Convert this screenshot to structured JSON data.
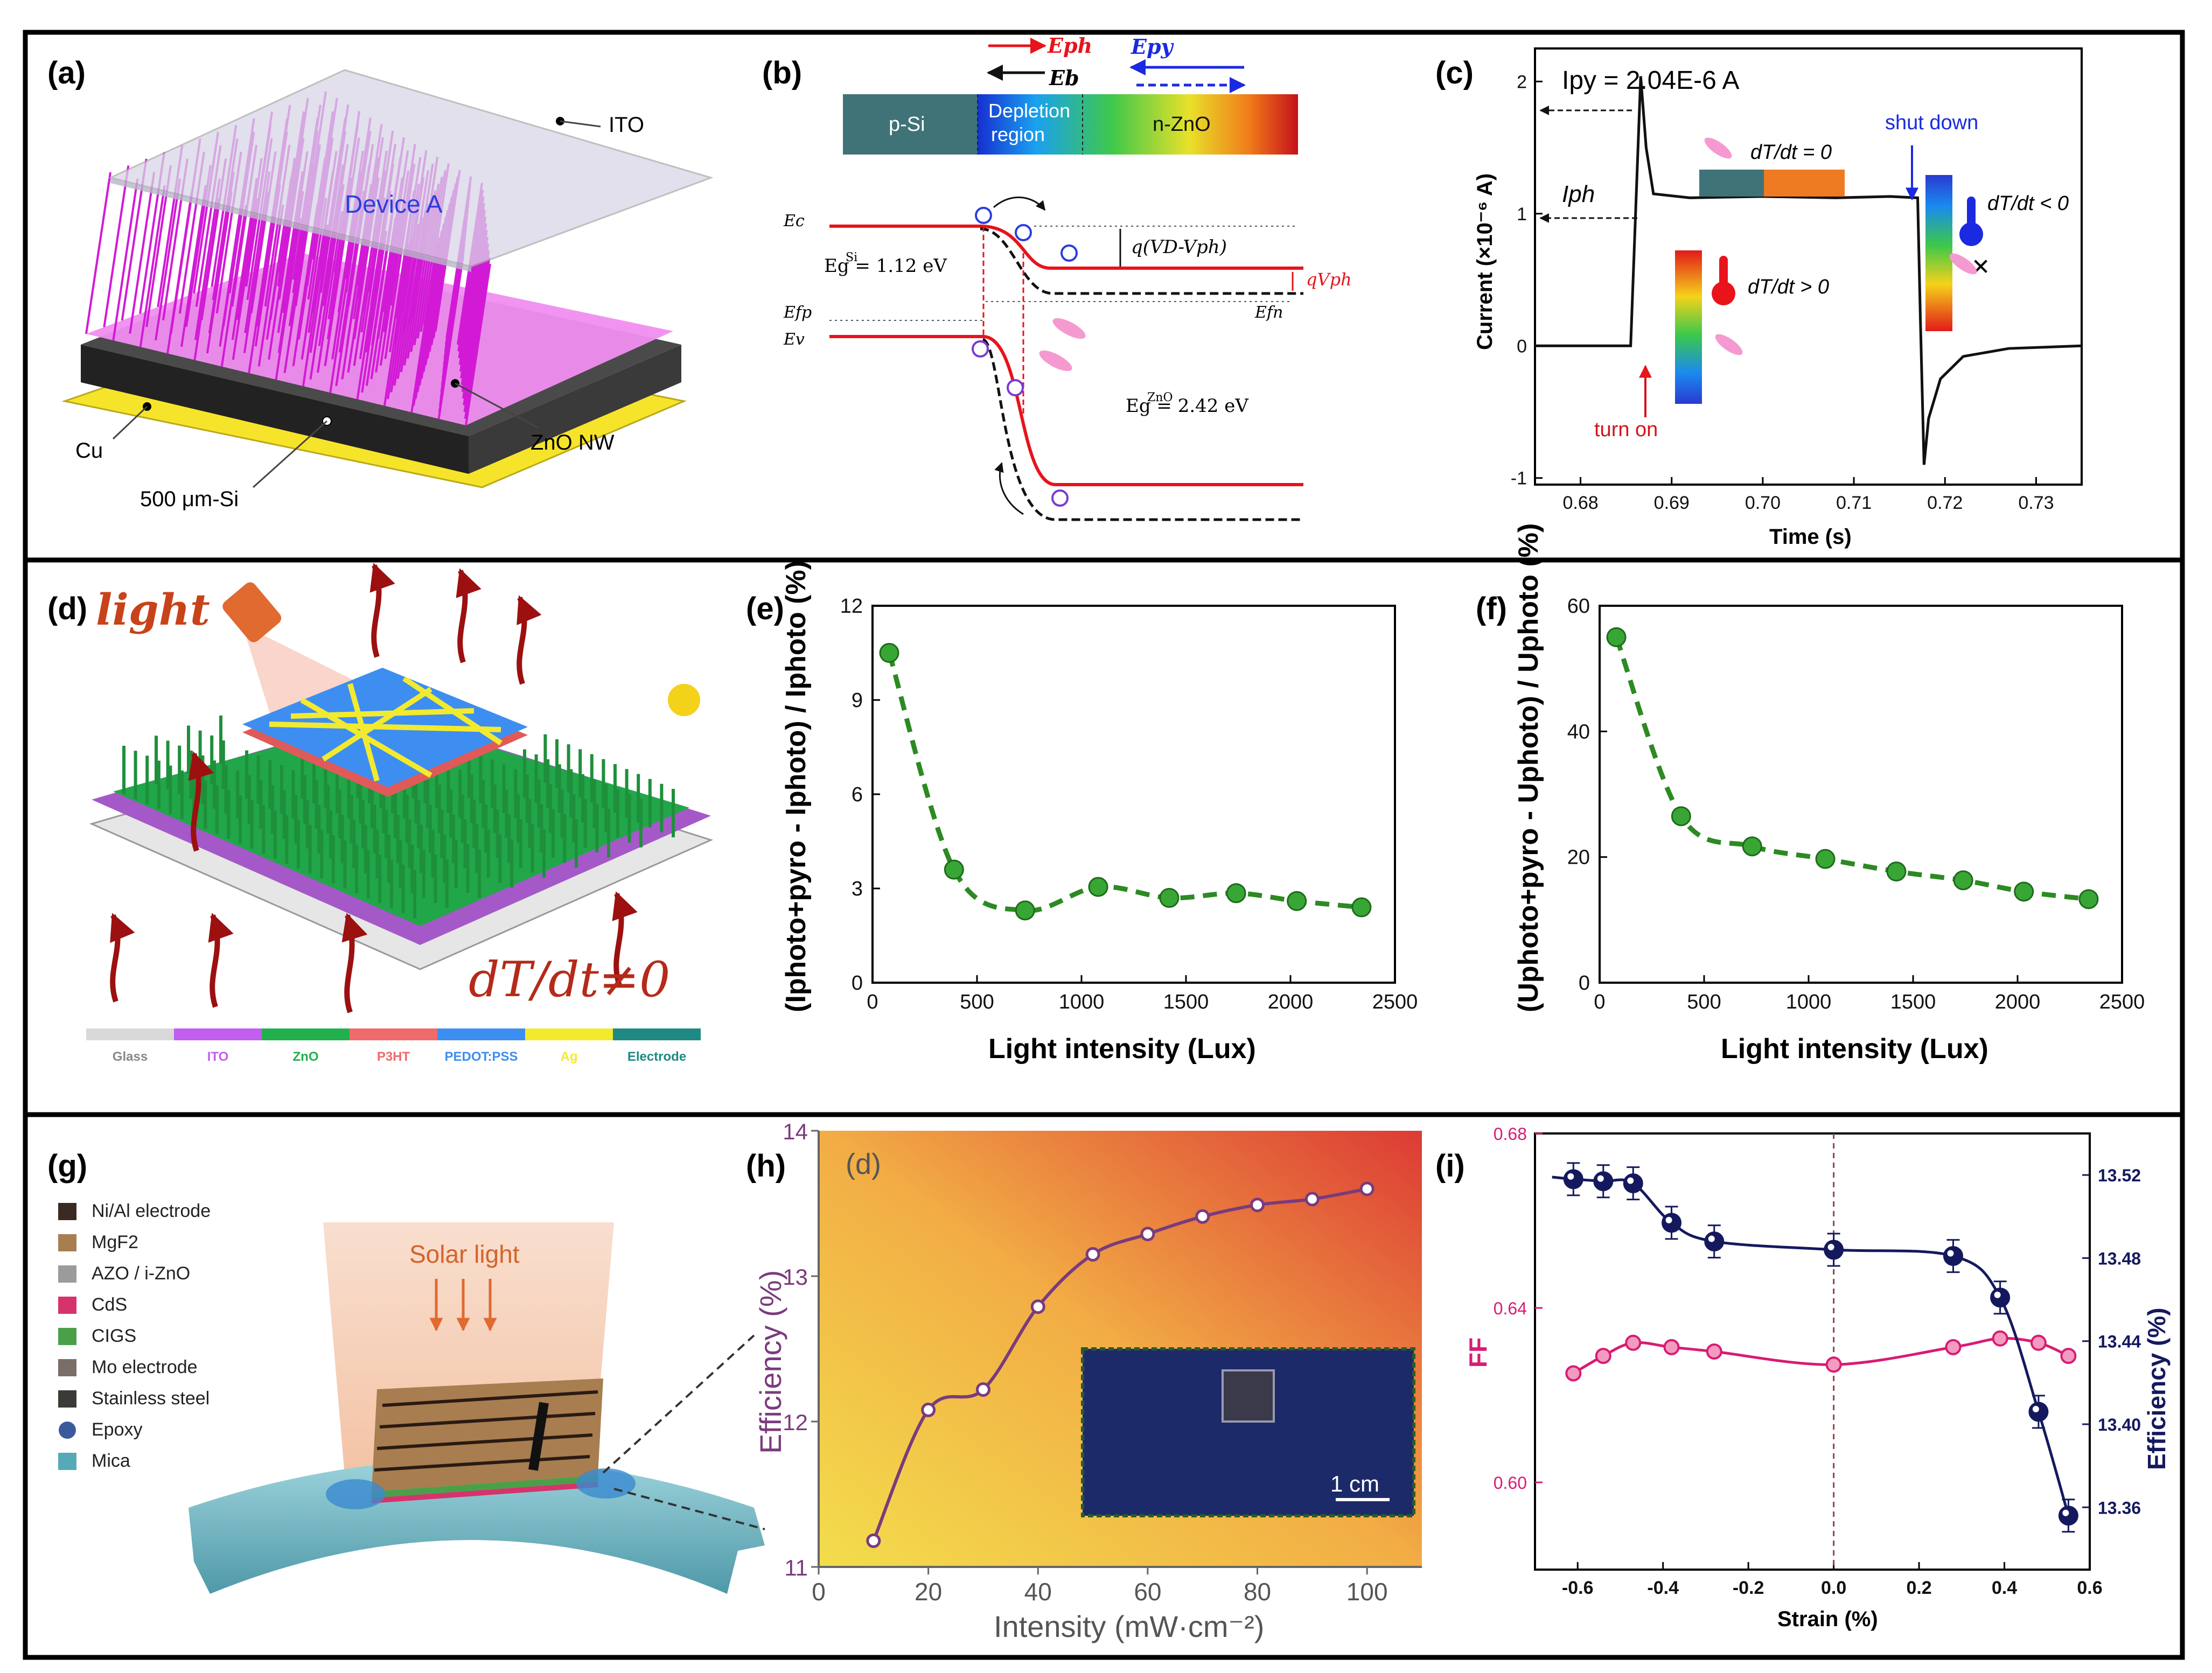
{
  "colors": {
    "pSi": "#3f7377",
    "ZnO_green": "#2db34a",
    "red": "#e8131b",
    "navy": "#14195e",
    "magenta": "#d81b74",
    "pink_nw": "#f47cf0",
    "purple": "#7a3b7d",
    "marker_green": "#38a635",
    "yellow": "#f6e84a",
    "orange_grad_end": "#e0403a"
  },
  "panel_labels": [
    "(a)",
    "(b)",
    "(c)",
    "(d)",
    "(e)",
    "(f)",
    "(g)",
    "(h)",
    "(i)"
  ],
  "panel_a": {
    "labels": {
      "ito": "ITO",
      "device": "Device A",
      "cu": "Cu",
      "si": "500 μm-Si",
      "znonw": "ZnO NW"
    }
  },
  "panel_b": {
    "arrows": {
      "eph": "Eph",
      "eb": "Eb",
      "epy": "Epy"
    },
    "bar": {
      "psi": "p-Si",
      "depletion1": "Depletion",
      "depletion2": "region",
      "nzno": "n-ZnO"
    },
    "levels": {
      "ec": "Ec",
      "efp": "Efp",
      "ev": "Ev",
      "efn": "Efn"
    },
    "gap_si": "Eg = 1.12 eV",
    "gap_si_sup": "Si",
    "gap_zno": "Eg = 2.42 eV",
    "gap_zno_sup": "ZnO",
    "qvd": "q(VD-Vph)",
    "qvph": "qVph"
  },
  "panel_c": {
    "ipy_text": "Ipy = 2.04E-6 A",
    "iph": "Iph",
    "annotations": {
      "dtdt0": "dT/dt = 0",
      "dtdt_pos": "dT/dt > 0",
      "dtdt_neg": "dT/dt < 0",
      "turn_on": "turn on",
      "shut_down": "shut down"
    },
    "chart_data": {
      "type": "line",
      "xlabel": "Time (s)",
      "ylabel": "Current (×10⁻⁶ A)",
      "xlim": [
        0.675,
        0.735
      ],
      "ylim": [
        -1.05,
        2.25
      ],
      "xticks": [
        "0.68",
        "0.69",
        "0.70",
        "0.71",
        "0.72",
        "0.73"
      ],
      "yticks": [
        "-1",
        "0",
        "1",
        "2"
      ],
      "series": [
        {
          "name": "Current",
          "x": [
            0.675,
            0.6855,
            0.6862,
            0.6866,
            0.6872,
            0.688,
            0.692,
            0.7,
            0.708,
            0.714,
            0.717,
            0.7173,
            0.7177,
            0.7182,
            0.7195,
            0.722,
            0.727,
            0.735
          ],
          "y": [
            0.0,
            0.0,
            1.3,
            2.04,
            1.5,
            1.15,
            1.12,
            1.13,
            1.12,
            1.13,
            1.12,
            0.2,
            -0.9,
            -0.55,
            -0.25,
            -0.08,
            -0.02,
            0.0
          ]
        }
      ]
    }
  },
  "panel_d": {
    "light": "light",
    "dtdt": "dT/dt≠0",
    "legend": [
      "Glass",
      "ITO",
      "ZnO",
      "P3HT",
      "PEDOT:PSS",
      "Ag",
      "Electrode"
    ],
    "legend_colors": [
      "#d9d9d9",
      "#c25ef0",
      "#22b04d",
      "#ef6b6b",
      "#3d8ef0",
      "#f2ea2e",
      "#1f8a84"
    ]
  },
  "panel_e": {
    "chart_data": {
      "type": "scatter",
      "xlabel": "Light intensity (Lux)",
      "ylabel": "(Iphoto+pyro - Iphoto) / Iphoto (%)",
      "xlim": [
        0,
        2500
      ],
      "ylim": [
        0,
        12
      ],
      "xticks": [
        "0",
        "500",
        "1000",
        "1500",
        "2000",
        "2500"
      ],
      "yticks": [
        "0",
        "3",
        "6",
        "9",
        "12"
      ],
      "x": [
        80,
        390,
        730,
        1080,
        1420,
        1740,
        2030,
        2340
      ],
      "y": [
        10.5,
        3.6,
        2.3,
        3.05,
        2.7,
        2.85,
        2.6,
        2.4
      ]
    }
  },
  "panel_f": {
    "chart_data": {
      "type": "scatter",
      "xlabel": "Light intensity (Lux)",
      "ylabel": "(Uphoto+pyro - Uphoto) / Uphoto (%)",
      "xlim": [
        0,
        2500
      ],
      "ylim": [
        0,
        60
      ],
      "xticks": [
        "0",
        "500",
        "1000",
        "1500",
        "2000",
        "2500"
      ],
      "yticks": [
        "0",
        "20",
        "40",
        "60"
      ],
      "x": [
        80,
        390,
        730,
        1080,
        1420,
        1740,
        2030,
        2340
      ],
      "y": [
        55,
        26.5,
        21.7,
        19.7,
        17.7,
        16.3,
        14.5,
        13.3
      ]
    }
  },
  "panel_g": {
    "solar": "Solar  light",
    "legend": [
      "Ni/Al electrode",
      "MgF2",
      "AZO / i-ZnO",
      "CdS",
      "CIGS",
      "Mo electrode",
      "Stainless steel",
      "Epoxy",
      "Mica"
    ],
    "legend_colors": [
      "#3a2a22",
      "#a87d50",
      "#9b9b9b",
      "#d6336c",
      "#4aa049",
      "#7a6e69",
      "#3c3a37",
      "#3a5a9c",
      "#56a9b6"
    ]
  },
  "panel_h": {
    "sub_label": "(d)",
    "scale": "1 cm",
    "chart_data": {
      "type": "line",
      "xlabel": "Intensity (mW·cm⁻²)",
      "ylabel": "Efficiency (%)",
      "xlim": [
        0,
        110
      ],
      "ylim": [
        11,
        14
      ],
      "xticks": [
        "0",
        "20",
        "40",
        "60",
        "80",
        "100"
      ],
      "yticks": [
        "11",
        "12",
        "13",
        "14"
      ],
      "x": [
        10,
        20,
        30,
        40,
        50,
        60,
        70,
        80,
        90,
        100
      ],
      "y": [
        11.18,
        12.08,
        12.22,
        12.79,
        13.15,
        13.29,
        13.41,
        13.49,
        13.53,
        13.6
      ]
    }
  },
  "panel_i": {
    "chart_data": {
      "type": "scatter",
      "xlabel": "Strain (%)",
      "ylabel_left": "FF",
      "ylabel_right": "Efficiency (%)",
      "xlim": [
        -0.7,
        0.6
      ],
      "ylim_left": [
        0.58,
        0.68
      ],
      "ylim_right": [
        13.33,
        13.54
      ],
      "xticks": [
        "-0.6",
        "-0.4",
        "-0.2",
        "0.0",
        "0.2",
        "0.4",
        "0.6"
      ],
      "yticks_left": [
        "0.60",
        "0.64",
        "0.68"
      ],
      "yticks_right": [
        "13.36",
        "13.40",
        "13.44",
        "13.48",
        "13.52"
      ],
      "series": [
        {
          "name": "FF",
          "axis": "left",
          "x": [
            -0.61,
            -0.54,
            -0.47,
            -0.38,
            -0.28,
            0.0,
            0.28,
            0.39,
            0.48,
            0.55
          ],
          "y": [
            0.625,
            0.629,
            0.632,
            0.631,
            0.63,
            0.627,
            0.631,
            0.633,
            0.632,
            0.629
          ]
        },
        {
          "name": "Efficiency",
          "axis": "right",
          "x": [
            -0.61,
            -0.54,
            -0.47,
            -0.38,
            -0.28,
            0.0,
            0.28,
            0.39,
            0.48,
            0.55
          ],
          "y": [
            13.518,
            13.517,
            13.516,
            13.497,
            13.488,
            13.484,
            13.481,
            13.461,
            13.406,
            13.356
          ]
        }
      ]
    }
  }
}
